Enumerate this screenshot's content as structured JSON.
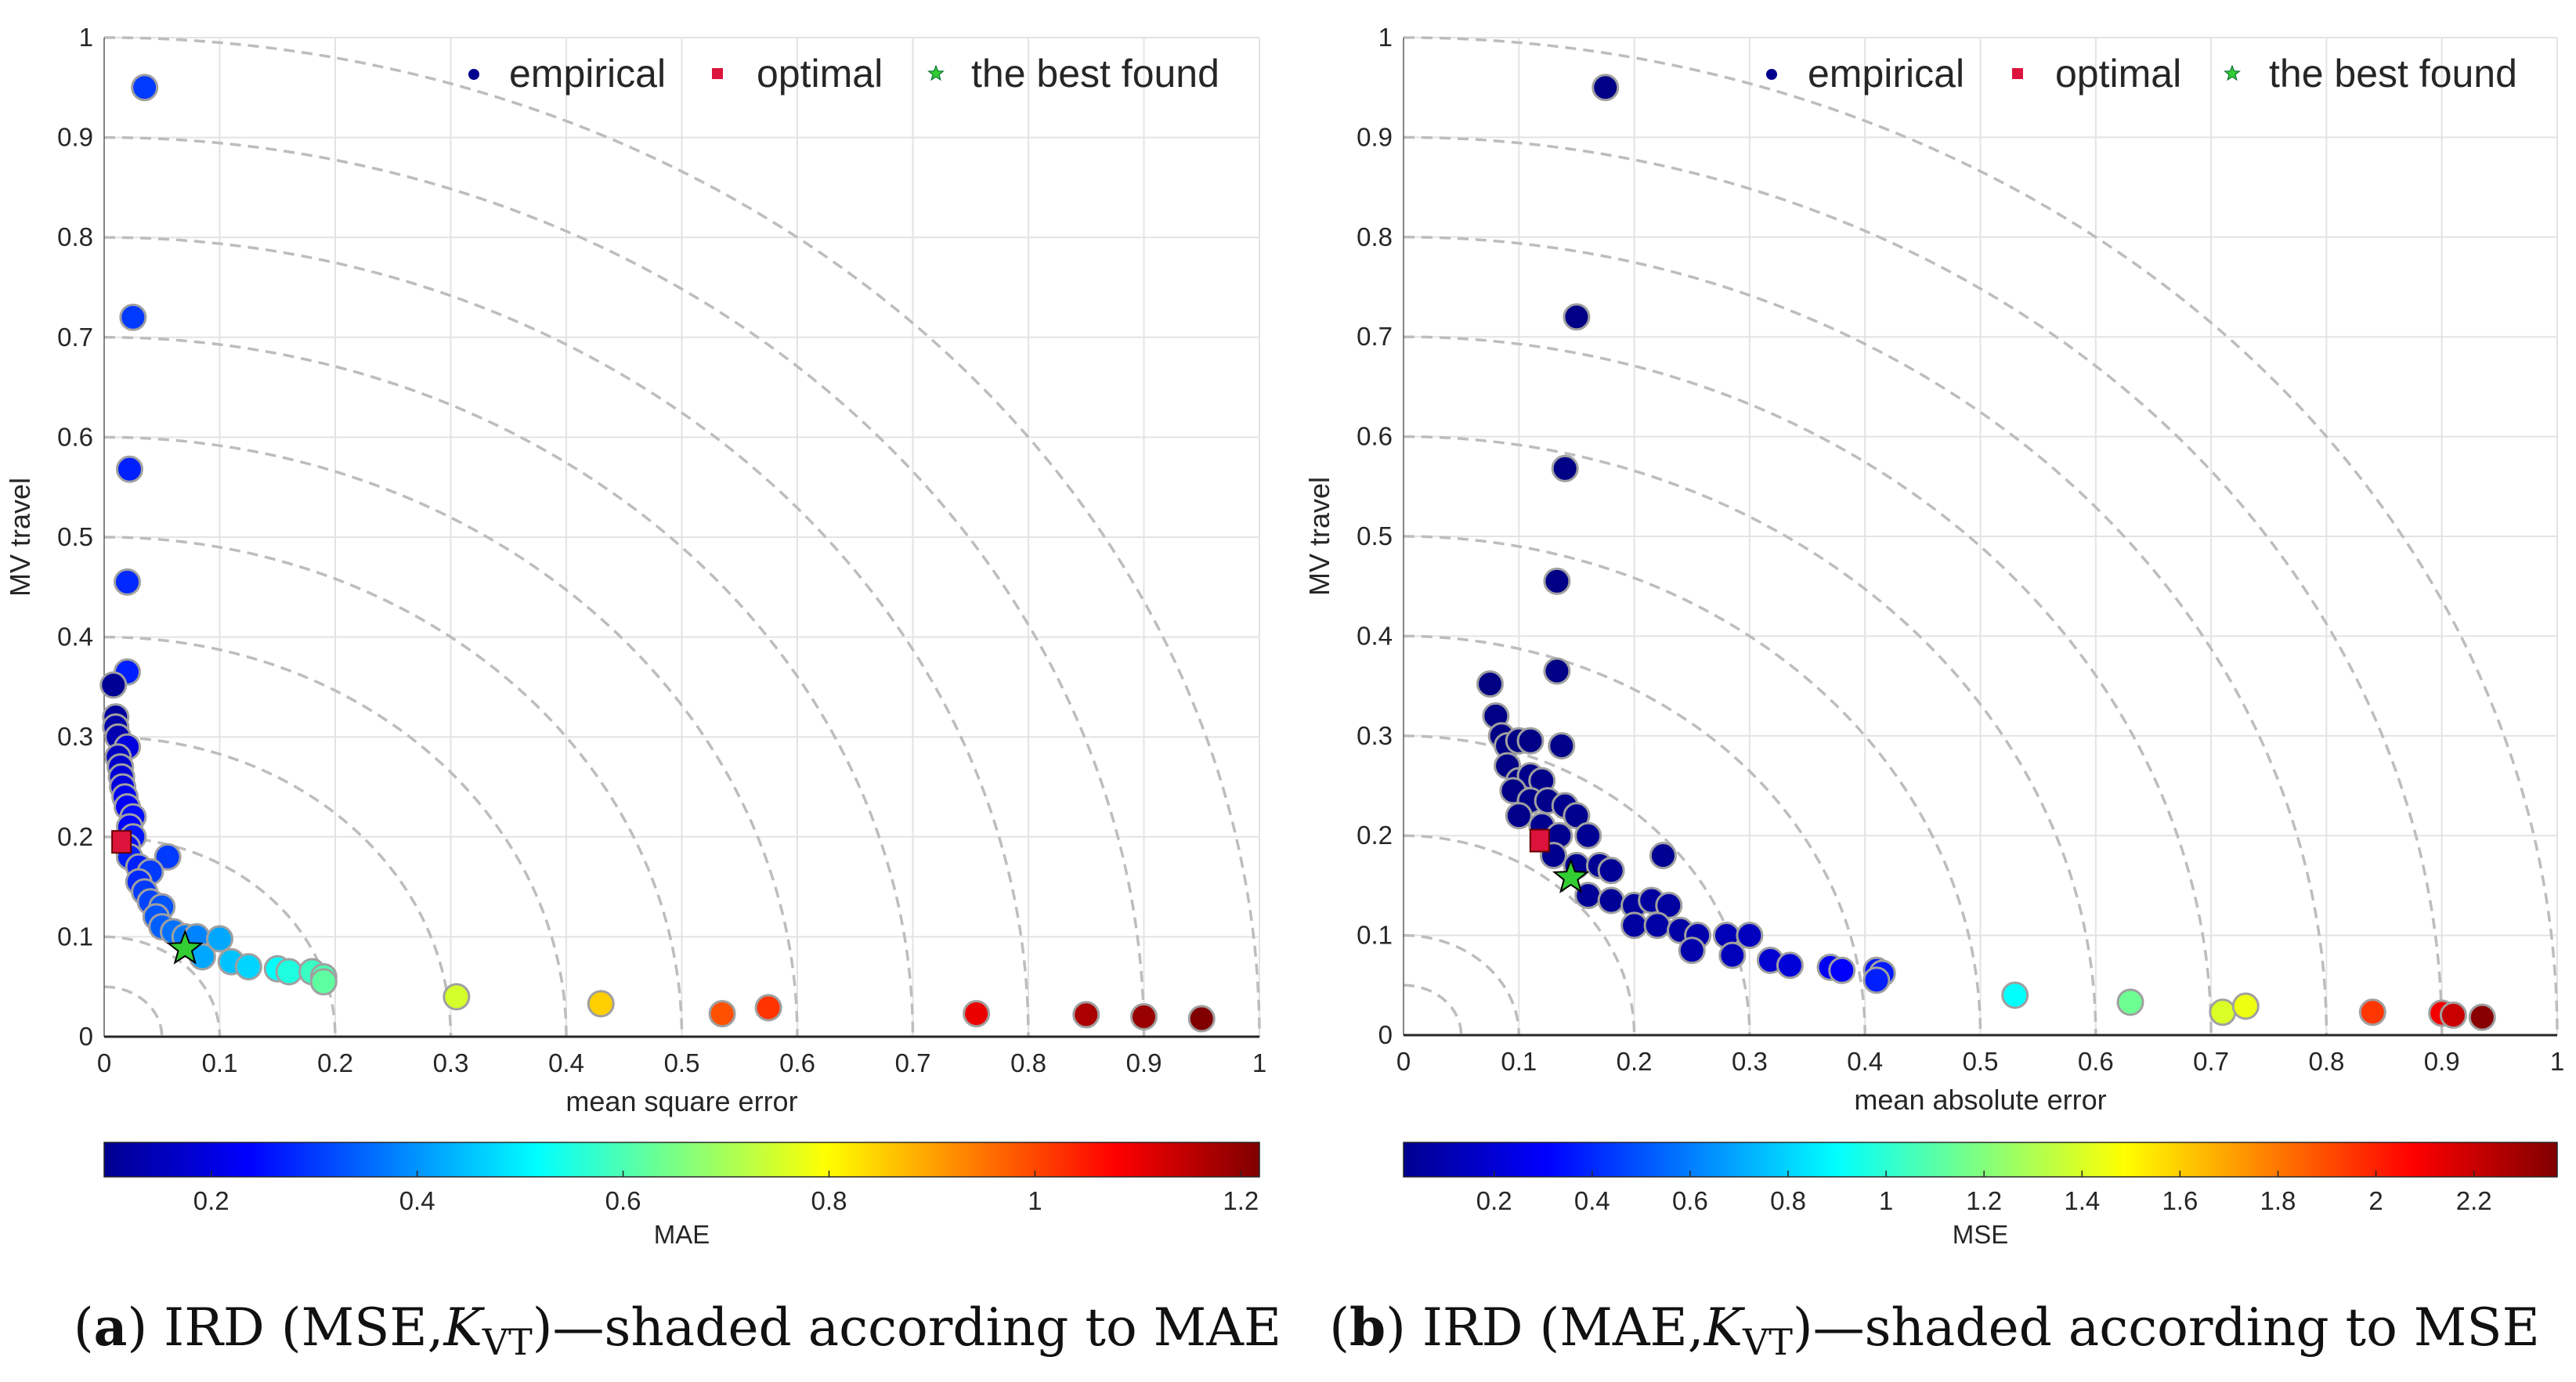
{
  "chart_data": [
    {
      "type": "scatter",
      "panel": "a",
      "xlabel": "mean square error",
      "ylabel": "MV travel",
      "xlim": [
        0,
        1
      ],
      "ylim": [
        0,
        1
      ],
      "xticks": [
        "0",
        "0.1",
        "0.2",
        "0.3",
        "0.4",
        "0.5",
        "0.6",
        "0.7",
        "0.8",
        "0.9",
        "1"
      ],
      "yticks": [
        "0",
        "0.1",
        "0.2",
        "0.3",
        "0.4",
        "0.5",
        "0.6",
        "0.7",
        "0.8",
        "0.9",
        "1"
      ],
      "arc_radii": [
        0.05,
        0.1,
        0.2,
        0.3,
        0.4,
        0.5,
        0.6,
        0.7,
        0.8,
        0.9,
        1.0
      ],
      "legend": {
        "placement": "top-right",
        "entries": [
          "empirical",
          "optimal",
          "the best found"
        ]
      },
      "colorbar": {
        "label": "MAE",
        "range": [
          0.096,
          1.218
        ],
        "ticks": [
          0.2,
          0.4,
          0.6,
          0.8,
          1,
          1.2
        ],
        "tick_labels": [
          "0.2",
          "0.4",
          "0.6",
          "0.8",
          "1",
          "1.2"
        ]
      },
      "empirical_points_x_y_color": [
        [
          0.035,
          0.95,
          0.3
        ],
        [
          0.025,
          0.72,
          0.3
        ],
        [
          0.022,
          0.568,
          0.27
        ],
        [
          0.02,
          0.455,
          0.28
        ],
        [
          0.02,
          0.365,
          0.27
        ],
        [
          0.008,
          0.352,
          0.12
        ],
        [
          0.01,
          0.32,
          0.13
        ],
        [
          0.01,
          0.31,
          0.14
        ],
        [
          0.012,
          0.3,
          0.15
        ],
        [
          0.02,
          0.29,
          0.2
        ],
        [
          0.012,
          0.28,
          0.17
        ],
        [
          0.014,
          0.27,
          0.18
        ],
        [
          0.015,
          0.26,
          0.19
        ],
        [
          0.016,
          0.25,
          0.2
        ],
        [
          0.018,
          0.24,
          0.22
        ],
        [
          0.02,
          0.23,
          0.23
        ],
        [
          0.025,
          0.22,
          0.25
        ],
        [
          0.022,
          0.21,
          0.24
        ],
        [
          0.025,
          0.2,
          0.26
        ],
        [
          0.02,
          0.19,
          0.25
        ],
        [
          0.022,
          0.18,
          0.27
        ],
        [
          0.055,
          0.18,
          0.3
        ],
        [
          0.03,
          0.17,
          0.27
        ],
        [
          0.04,
          0.165,
          0.3
        ],
        [
          0.03,
          0.155,
          0.28
        ],
        [
          0.035,
          0.145,
          0.3
        ],
        [
          0.04,
          0.135,
          0.31
        ],
        [
          0.05,
          0.13,
          0.33
        ],
        [
          0.045,
          0.12,
          0.33
        ],
        [
          0.05,
          0.11,
          0.34
        ],
        [
          0.06,
          0.105,
          0.36
        ],
        [
          0.07,
          0.1,
          0.37
        ],
        [
          0.08,
          0.1,
          0.38
        ],
        [
          0.1,
          0.098,
          0.42
        ],
        [
          0.085,
          0.08,
          0.42
        ],
        [
          0.11,
          0.075,
          0.45
        ],
        [
          0.125,
          0.07,
          0.47
        ],
        [
          0.15,
          0.068,
          0.52
        ],
        [
          0.16,
          0.065,
          0.55
        ],
        [
          0.18,
          0.065,
          0.58
        ],
        [
          0.19,
          0.06,
          0.6
        ],
        [
          0.19,
          0.055,
          0.62
        ],
        [
          0.305,
          0.04,
          0.75
        ],
        [
          0.43,
          0.033,
          0.85
        ],
        [
          0.535,
          0.023,
          0.99
        ],
        [
          0.575,
          0.029,
          1.02
        ],
        [
          0.755,
          0.023,
          1.1
        ],
        [
          0.85,
          0.022,
          1.17
        ],
        [
          0.9,
          0.02,
          1.19
        ],
        [
          0.95,
          0.018,
          1.22
        ]
      ],
      "optimal": [
        0.015,
        0.195
      ],
      "best_found": [
        0.07,
        0.088
      ],
      "caption": {
        "label": "a",
        "pre": " IRD (MSE,",
        "K": "K",
        "sub": "VT",
        "post": ")—shaded according to MAE"
      }
    },
    {
      "type": "scatter",
      "panel": "b",
      "xlabel": "mean absolute error",
      "ylabel": "MV travel",
      "xlim": [
        0,
        1
      ],
      "ylim": [
        0,
        1
      ],
      "xticks": [
        "0",
        "0.1",
        "0.2",
        "0.3",
        "0.4",
        "0.5",
        "0.6",
        "0.7",
        "0.8",
        "0.9",
        "1"
      ],
      "yticks": [
        "0",
        "0.1",
        "0.2",
        "0.3",
        "0.4",
        "0.5",
        "0.6",
        "0.7",
        "0.8",
        "0.9",
        "1"
      ],
      "arc_radii": [
        0.05,
        0.1,
        0.2,
        0.3,
        0.4,
        0.5,
        0.6,
        0.7,
        0.8,
        0.9,
        1.0
      ],
      "legend": {
        "placement": "top-right",
        "entries": [
          "empirical",
          "optimal",
          "the best found"
        ]
      },
      "colorbar": {
        "label": "MSE",
        "range": [
          0.015,
          2.37
        ],
        "ticks": [
          0.2,
          0.4,
          0.6,
          0.8,
          1,
          1.2,
          1.4,
          1.6,
          1.8,
          2,
          2.2
        ],
        "tick_labels": [
          "0.2",
          "0.4",
          "0.6",
          "0.8",
          "1",
          "1.2",
          "1.4",
          "1.6",
          "1.8",
          "2",
          "2.2"
        ]
      },
      "empirical_points_x_y_color": [
        [
          0.175,
          0.95,
          0.03
        ],
        [
          0.15,
          0.72,
          0.03
        ],
        [
          0.14,
          0.568,
          0.03
        ],
        [
          0.133,
          0.455,
          0.03
        ],
        [
          0.133,
          0.365,
          0.03
        ],
        [
          0.075,
          0.352,
          0.02
        ],
        [
          0.08,
          0.32,
          0.03
        ],
        [
          0.085,
          0.3,
          0.03
        ],
        [
          0.09,
          0.29,
          0.03
        ],
        [
          0.1,
          0.295,
          0.03
        ],
        [
          0.11,
          0.295,
          0.03
        ],
        [
          0.137,
          0.29,
          0.04
        ],
        [
          0.09,
          0.27,
          0.03
        ],
        [
          0.1,
          0.255,
          0.03
        ],
        [
          0.11,
          0.26,
          0.04
        ],
        [
          0.12,
          0.255,
          0.04
        ],
        [
          0.095,
          0.245,
          0.03
        ],
        [
          0.11,
          0.235,
          0.04
        ],
        [
          0.125,
          0.235,
          0.04
        ],
        [
          0.14,
          0.23,
          0.05
        ],
        [
          0.15,
          0.22,
          0.05
        ],
        [
          0.1,
          0.22,
          0.04
        ],
        [
          0.12,
          0.21,
          0.05
        ],
        [
          0.135,
          0.2,
          0.05
        ],
        [
          0.16,
          0.2,
          0.06
        ],
        [
          0.13,
          0.18,
          0.05
        ],
        [
          0.225,
          0.18,
          0.06
        ],
        [
          0.15,
          0.17,
          0.06
        ],
        [
          0.17,
          0.17,
          0.06
        ],
        [
          0.18,
          0.165,
          0.07
        ],
        [
          0.16,
          0.14,
          0.07
        ],
        [
          0.18,
          0.135,
          0.07
        ],
        [
          0.2,
          0.13,
          0.08
        ],
        [
          0.215,
          0.135,
          0.09
        ],
        [
          0.23,
          0.13,
          0.09
        ],
        [
          0.2,
          0.11,
          0.09
        ],
        [
          0.22,
          0.11,
          0.1
        ],
        [
          0.24,
          0.105,
          0.1
        ],
        [
          0.255,
          0.1,
          0.12
        ],
        [
          0.25,
          0.085,
          0.12
        ],
        [
          0.28,
          0.1,
          0.14
        ],
        [
          0.3,
          0.1,
          0.16
        ],
        [
          0.285,
          0.08,
          0.15
        ],
        [
          0.318,
          0.075,
          0.2
        ],
        [
          0.335,
          0.07,
          0.22
        ],
        [
          0.37,
          0.068,
          0.28
        ],
        [
          0.38,
          0.065,
          0.3
        ],
        [
          0.41,
          0.065,
          0.35
        ],
        [
          0.415,
          0.062,
          0.37
        ],
        [
          0.41,
          0.055,
          0.38
        ],
        [
          0.53,
          0.04,
          0.9
        ],
        [
          0.63,
          0.033,
          1.15
        ],
        [
          0.71,
          0.023,
          1.4
        ],
        [
          0.73,
          0.029,
          1.45
        ],
        [
          0.84,
          0.023,
          1.95
        ],
        [
          0.9,
          0.022,
          2.1
        ],
        [
          0.91,
          0.02,
          2.2
        ],
        [
          0.935,
          0.018,
          2.35
        ]
      ],
      "optimal": [
        0.118,
        0.195
      ],
      "best_found": [
        0.145,
        0.158
      ],
      "caption": {
        "label": "b",
        "pre": " IRD (MAE,",
        "K": "K",
        "sub": "VT",
        "post": ")—shaded according to MSE"
      }
    }
  ],
  "colors": {
    "optimal": "#dc143c",
    "best_found": "#32cd32",
    "marker_edge": "#a0a0a0",
    "arc": "#bdbdbd",
    "grid": "#e3e3e3"
  }
}
